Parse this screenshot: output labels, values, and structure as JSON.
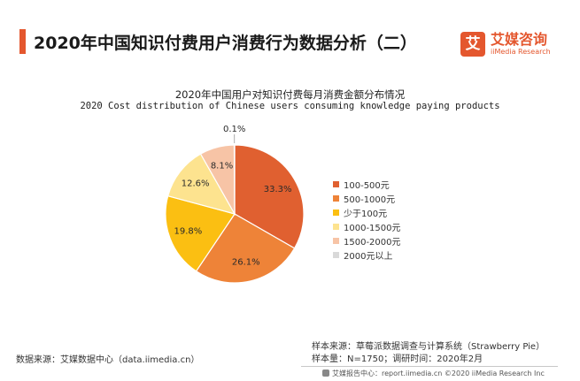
{
  "header": {
    "title": "2020年中国知识付费用户消费行为数据分析（二）",
    "brand_mark": "艾",
    "brand_cn": "艾媒咨询",
    "brand_en": "iiMedia Research",
    "accent_color": "#e4572e"
  },
  "chart_data": {
    "type": "pie",
    "title": "2020年中国用户对知识付费每月消费金额分布情况",
    "subtitle": "2020 Cost distribution of Chinese users consuming knowledge paying products",
    "slices": [
      {
        "label": "100-500元",
        "value": 33.3,
        "value_label": "33.3%",
        "color": "#e06030"
      },
      {
        "label": "500-1000元",
        "value": 26.1,
        "value_label": "26.1%",
        "color": "#ee8338"
      },
      {
        "label": "少于100元",
        "value": 19.8,
        "value_label": "19.8%",
        "color": "#fbbf12"
      },
      {
        "label": "1000-1500元",
        "value": 12.6,
        "value_label": "12.6%",
        "color": "#fde38f"
      },
      {
        "label": "1500-2000元",
        "value": 8.1,
        "value_label": "8.1%",
        "color": "#f7c4a6"
      },
      {
        "label": "2000元以上",
        "value": 0.1,
        "value_label": "0.1%",
        "color": "#d9d9d9"
      }
    ],
    "legend_position": "right"
  },
  "footer": {
    "source": "数据来源：艾媒数据中心（data.iimedia.cn）",
    "sample_source": "样本来源：草莓派数据调查与计算系统（Strawberry Pie）",
    "sample_info": "样本量：N=1750；调研时间：2020年2月",
    "report_line": "艾媒报告中心：report.iimedia.cn  ©2020  iiMedia Research  Inc"
  }
}
